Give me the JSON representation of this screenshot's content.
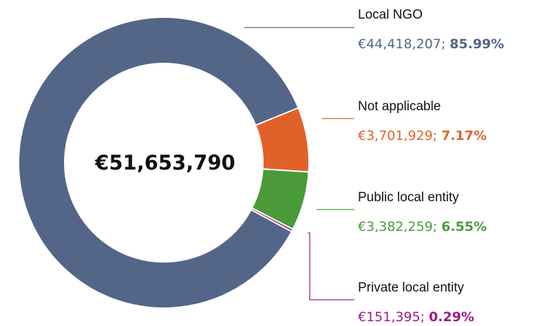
{
  "chart_data": {
    "type": "donut",
    "total_label": "€51,653,790",
    "categories": [
      "Local NGO",
      "Not applicable",
      "Public local entity",
      "Private local entity"
    ],
    "values": [
      85.99,
      7.17,
      6.55,
      0.29
    ],
    "value_labels": [
      "85.99%",
      "7.17%",
      "6.55%",
      "0.29%"
    ],
    "amounts": [
      44418207,
      3701929,
      3382259,
      151395
    ],
    "amount_labels": [
      "€44,418,207;",
      "€3,701,929;",
      "€3,382,259;",
      "€151,395;"
    ],
    "colors": [
      "#536687",
      "#e0622a",
      "#4a9a3a",
      "#a01a8a"
    ]
  }
}
